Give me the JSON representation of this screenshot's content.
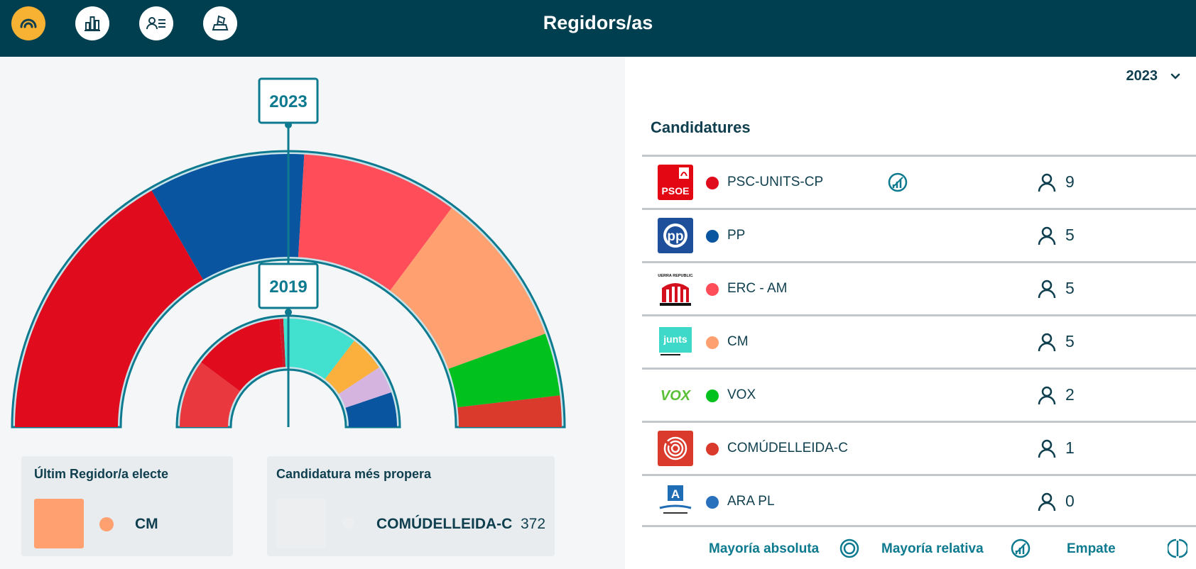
{
  "header": {
    "title": "Regidors/as",
    "buttons": [
      {
        "name": "hemicycle-icon",
        "active": true
      },
      {
        "name": "bar-chart-icon",
        "active": false
      },
      {
        "name": "candidate-list-icon",
        "active": false
      },
      {
        "name": "ballot-box-icon",
        "active": false
      }
    ]
  },
  "chart": {
    "outer_label": "2023",
    "inner_label": "2019"
  },
  "chart_data": {
    "type": "pie",
    "title": "",
    "rings": [
      {
        "name": "2023",
        "segments": [
          {
            "party": "PSC-UNITS-CP",
            "seats": 9,
            "color": "#e00b1c"
          },
          {
            "party": "PP",
            "seats": 5,
            "color": "#0a55a0"
          },
          {
            "party": "ERC - AM",
            "seats": 5,
            "color": "#ff4e5a"
          },
          {
            "party": "CM",
            "seats": 5,
            "color": "#ffa070"
          },
          {
            "party": "VOX",
            "seats": 2,
            "color": "#00c11d"
          },
          {
            "party": "COMÚDELLEIDA-C",
            "seats": 1,
            "color": "#d93a2c"
          }
        ]
      },
      {
        "name": "2019",
        "segments": [
          {
            "party": "",
            "value": 5.5,
            "color": "#e9393e"
          },
          {
            "party": "",
            "value": 7.3,
            "color": "#e00b1c"
          },
          {
            "party": "",
            "value": 0.3,
            "color": "#c91a2d"
          },
          {
            "party": "",
            "value": 6.0,
            "color": "#42e0cf"
          },
          {
            "party": "",
            "value": 2.9,
            "color": "#fbb03d"
          },
          {
            "party": "",
            "value": 2.2,
            "color": "#d6b4e0"
          },
          {
            "party": "",
            "value": 2.8,
            "color": "#0a55a0"
          }
        ]
      }
    ]
  },
  "last_elected": {
    "title": "Últim Regidor/a electe",
    "party": "CM",
    "color": "#ffa070"
  },
  "closest": {
    "title": "Candidatura més propera",
    "party": "COMÚDELLEIDA-C",
    "votes": "372"
  },
  "year_select": {
    "value": "2023"
  },
  "candidatures": {
    "title": "Candidatures",
    "items": [
      {
        "logo": "PSOE",
        "logo_bg": "#e30613",
        "logo_color": "#ffffff",
        "color": "#e00b1c",
        "name": "PSC-UNITS-CP",
        "seats": "9",
        "majority": "relative"
      },
      {
        "logo": "pp",
        "logo_bg": "#1d4f9a",
        "logo_color": "#ffffff",
        "color": "#0a55a0",
        "name": "PP",
        "seats": "5",
        "majority": ""
      },
      {
        "logo": "ESQUERRA REPUBLICANA",
        "logo_bg": "#ffffff",
        "logo_color": "#111111",
        "color": "#ff4e5a",
        "name": "ERC - AM",
        "seats": "5",
        "majority": ""
      },
      {
        "logo": "junts",
        "logo_bg": "#ffffff",
        "logo_color": "#ffffff",
        "color": "#ffa070",
        "name": "CM",
        "seats": "5",
        "majority": ""
      },
      {
        "logo": "VOX",
        "logo_bg": "#ffffff",
        "logo_color": "#5ac035",
        "color": "#00c11d",
        "name": "VOX",
        "seats": "2",
        "majority": ""
      },
      {
        "logo": "",
        "logo_bg": "#d93a2c",
        "logo_color": "#ffffff",
        "color": "#d93a2c",
        "name": "COMÚDELLEIDA-C",
        "seats": "1",
        "majority": ""
      },
      {
        "logo": "A",
        "logo_bg": "#ffffff",
        "logo_color": "#1f6db5",
        "color": "#2a71bd",
        "name": "ARA PL",
        "seats": "0",
        "majority": ""
      }
    ]
  },
  "legend": {
    "absolute": "Mayoría absoluta",
    "relative": "Mayoría relativa",
    "tie": "Empate"
  }
}
